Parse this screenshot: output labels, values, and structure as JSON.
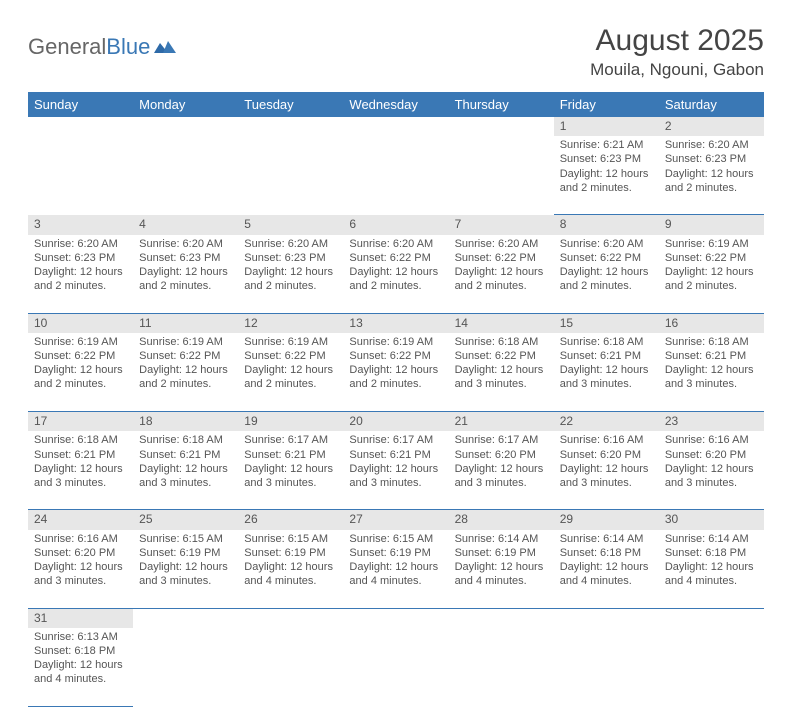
{
  "logo": {
    "text1": "General",
    "text2": "Blue"
  },
  "title": "August 2025",
  "subtitle": "Mouila, Ngouni, Gabon",
  "colors": {
    "header_bg": "#3a78b5",
    "header_fg": "#ffffff",
    "daynum_bg": "#e7e7e7",
    "text": "#555555",
    "rule": "#3a78b5",
    "page_bg": "#ffffff"
  },
  "day_headers": [
    "Sunday",
    "Monday",
    "Tuesday",
    "Wednesday",
    "Thursday",
    "Friday",
    "Saturday"
  ],
  "weeks": [
    [
      null,
      null,
      null,
      null,
      null,
      {
        "n": "1",
        "sr": "6:21 AM",
        "ss": "6:23 PM",
        "dl": "12 hours and 2 minutes."
      },
      {
        "n": "2",
        "sr": "6:20 AM",
        "ss": "6:23 PM",
        "dl": "12 hours and 2 minutes."
      }
    ],
    [
      {
        "n": "3",
        "sr": "6:20 AM",
        "ss": "6:23 PM",
        "dl": "12 hours and 2 minutes."
      },
      {
        "n": "4",
        "sr": "6:20 AM",
        "ss": "6:23 PM",
        "dl": "12 hours and 2 minutes."
      },
      {
        "n": "5",
        "sr": "6:20 AM",
        "ss": "6:23 PM",
        "dl": "12 hours and 2 minutes."
      },
      {
        "n": "6",
        "sr": "6:20 AM",
        "ss": "6:22 PM",
        "dl": "12 hours and 2 minutes."
      },
      {
        "n": "7",
        "sr": "6:20 AM",
        "ss": "6:22 PM",
        "dl": "12 hours and 2 minutes."
      },
      {
        "n": "8",
        "sr": "6:20 AM",
        "ss": "6:22 PM",
        "dl": "12 hours and 2 minutes."
      },
      {
        "n": "9",
        "sr": "6:19 AM",
        "ss": "6:22 PM",
        "dl": "12 hours and 2 minutes."
      }
    ],
    [
      {
        "n": "10",
        "sr": "6:19 AM",
        "ss": "6:22 PM",
        "dl": "12 hours and 2 minutes."
      },
      {
        "n": "11",
        "sr": "6:19 AM",
        "ss": "6:22 PM",
        "dl": "12 hours and 2 minutes."
      },
      {
        "n": "12",
        "sr": "6:19 AM",
        "ss": "6:22 PM",
        "dl": "12 hours and 2 minutes."
      },
      {
        "n": "13",
        "sr": "6:19 AM",
        "ss": "6:22 PM",
        "dl": "12 hours and 2 minutes."
      },
      {
        "n": "14",
        "sr": "6:18 AM",
        "ss": "6:22 PM",
        "dl": "12 hours and 3 minutes."
      },
      {
        "n": "15",
        "sr": "6:18 AM",
        "ss": "6:21 PM",
        "dl": "12 hours and 3 minutes."
      },
      {
        "n": "16",
        "sr": "6:18 AM",
        "ss": "6:21 PM",
        "dl": "12 hours and 3 minutes."
      }
    ],
    [
      {
        "n": "17",
        "sr": "6:18 AM",
        "ss": "6:21 PM",
        "dl": "12 hours and 3 minutes."
      },
      {
        "n": "18",
        "sr": "6:18 AM",
        "ss": "6:21 PM",
        "dl": "12 hours and 3 minutes."
      },
      {
        "n": "19",
        "sr": "6:17 AM",
        "ss": "6:21 PM",
        "dl": "12 hours and 3 minutes."
      },
      {
        "n": "20",
        "sr": "6:17 AM",
        "ss": "6:21 PM",
        "dl": "12 hours and 3 minutes."
      },
      {
        "n": "21",
        "sr": "6:17 AM",
        "ss": "6:20 PM",
        "dl": "12 hours and 3 minutes."
      },
      {
        "n": "22",
        "sr": "6:16 AM",
        "ss": "6:20 PM",
        "dl": "12 hours and 3 minutes."
      },
      {
        "n": "23",
        "sr": "6:16 AM",
        "ss": "6:20 PM",
        "dl": "12 hours and 3 minutes."
      }
    ],
    [
      {
        "n": "24",
        "sr": "6:16 AM",
        "ss": "6:20 PM",
        "dl": "12 hours and 3 minutes."
      },
      {
        "n": "25",
        "sr": "6:15 AM",
        "ss": "6:19 PM",
        "dl": "12 hours and 3 minutes."
      },
      {
        "n": "26",
        "sr": "6:15 AM",
        "ss": "6:19 PM",
        "dl": "12 hours and 4 minutes."
      },
      {
        "n": "27",
        "sr": "6:15 AM",
        "ss": "6:19 PM",
        "dl": "12 hours and 4 minutes."
      },
      {
        "n": "28",
        "sr": "6:14 AM",
        "ss": "6:19 PM",
        "dl": "12 hours and 4 minutes."
      },
      {
        "n": "29",
        "sr": "6:14 AM",
        "ss": "6:18 PM",
        "dl": "12 hours and 4 minutes."
      },
      {
        "n": "30",
        "sr": "6:14 AM",
        "ss": "6:18 PM",
        "dl": "12 hours and 4 minutes."
      }
    ],
    [
      {
        "n": "31",
        "sr": "6:13 AM",
        "ss": "6:18 PM",
        "dl": "12 hours and 4 minutes."
      },
      null,
      null,
      null,
      null,
      null,
      null
    ]
  ],
  "labels": {
    "sunrise": "Sunrise:",
    "sunset": "Sunset:",
    "daylight": "Daylight:"
  }
}
